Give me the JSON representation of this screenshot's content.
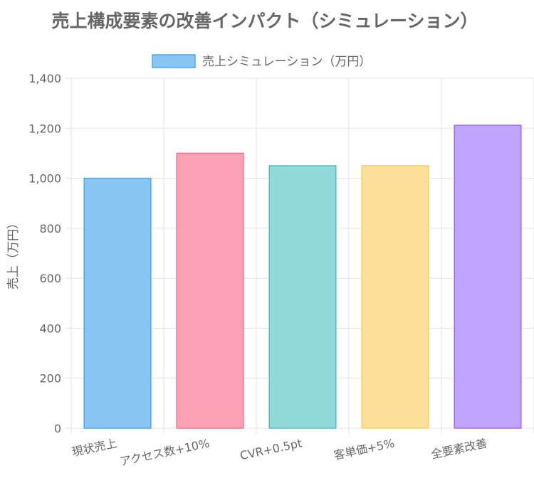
{
  "chart_data": {
    "type": "bar",
    "title": "売上構成要素の改善インパクト（シミュレーション）",
    "ylabel": "売上（万円）",
    "xlabel": "",
    "categories": [
      "現状売上",
      "アクセス数+10%",
      "CVR+0.5pt",
      "客単価+5%",
      "全要素改善"
    ],
    "series": [
      {
        "name": "売上シミュレーション（万円）",
        "values": [
          1000,
          1100,
          1050,
          1050,
          1212
        ]
      }
    ],
    "ylim": [
      0,
      1400
    ],
    "yticks": [
      0,
      200,
      400,
      600,
      800,
      1000,
      1200,
      1400
    ],
    "ytick_labels": [
      "0",
      "200",
      "400",
      "600",
      "800",
      "1,000",
      "1,200",
      "1,400"
    ],
    "grid": true,
    "legend_position": "top",
    "bar_fill_colors": [
      "#89c6f3",
      "#fda1b4",
      "#92d9da",
      "#fcdf99",
      "#c1a4fe"
    ],
    "bar_border_colors": [
      "#4aa8e6",
      "#f3708e",
      "#52bfbf",
      "#f8cd62",
      "#9b6cf5"
    ],
    "legend_fill": "#89c6f3",
    "legend_border": "#4aa8e6",
    "title_color": "#666666",
    "text_color": "#666666",
    "grid_color": "#e3e3e3"
  }
}
